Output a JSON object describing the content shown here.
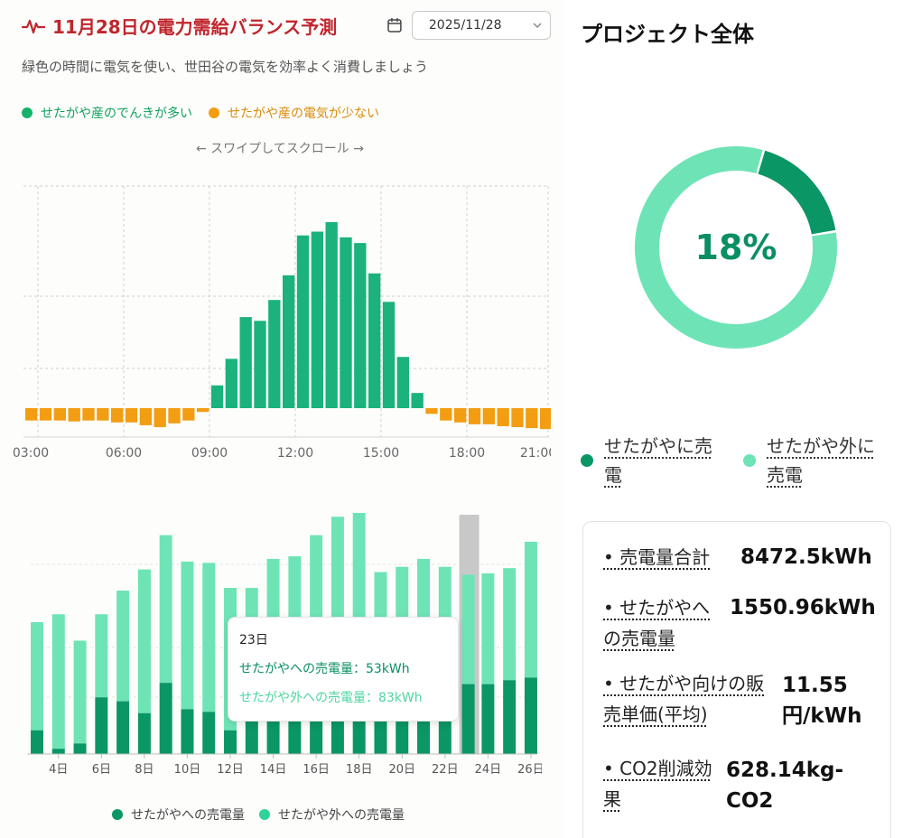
{
  "header": {
    "title": "11月28日の電力需給バランス予測",
    "date_value": "2025/11/28",
    "subtitle": "緑色の時間に電気を使い、世田谷の電気を効率よく消費しましょう",
    "swipe_hint": "← スワイプしてスクロール →"
  },
  "colors": {
    "accent_red": "#c0262d",
    "green_dark": "#0a9665",
    "green_main": "#1bb27e",
    "green_light": "#6ee4b6",
    "orange": "#f29d12",
    "gray_bar": "#c8c8c8"
  },
  "chart_data": [
    {
      "type": "bar",
      "legend": [
        {
          "label": "せたがや産のでんきが多い",
          "color": "#16b26a"
        },
        {
          "label": "せたがや産の電気が少ない",
          "color": "#f29d12"
        }
      ],
      "x_ticks": [
        "03:00",
        "06:00",
        "09:00",
        "12:00",
        "15:00",
        "18:00",
        "21:00"
      ],
      "x_start_hour": 3,
      "step_hours": 0.5,
      "values": [
        -13,
        -13,
        -13,
        -14,
        -13,
        -13,
        -15,
        -15,
        -18,
        -20,
        -16,
        -13,
        -4,
        24,
        52,
        96,
        92,
        114,
        140,
        182,
        186,
        196,
        180,
        174,
        142,
        112,
        54,
        16,
        -6,
        -13,
        -15,
        -17,
        -17,
        -19,
        -20,
        -21,
        -22,
        -23,
        -23
      ],
      "ylim": [
        -30,
        240
      ],
      "grid": true
    },
    {
      "type": "bar",
      "stacked": true,
      "categories": [
        "3日",
        "4日",
        "5日",
        "6日",
        "7日",
        "8日",
        "9日",
        "10日",
        "11日",
        "12日",
        "13日",
        "14日",
        "15日",
        "16日",
        "17日",
        "18日",
        "19日",
        "20日",
        "21日",
        "22日",
        "23日",
        "24日",
        "25日",
        "26日"
      ],
      "x_tick_labels": [
        "4日",
        "6日",
        "8日",
        "10日",
        "12日",
        "14日",
        "16日",
        "18日",
        "20日",
        "22日",
        "24日",
        "26日"
      ],
      "series": [
        {
          "name": "せたがやへの売電量",
          "color": "#0a9665",
          "values": [
            18,
            4,
            8,
            43,
            40,
            31,
            54,
            34,
            32,
            18,
            36,
            38,
            40,
            43,
            48,
            45,
            42,
            44,
            38,
            36,
            53,
            53,
            56,
            58
          ]
        },
        {
          "name": "せたがや外への売電量",
          "color": "#6ee4b6",
          "values": [
            82,
            102,
            78,
            63,
            84,
            109,
            112,
            112,
            113,
            108,
            90,
            110,
            110,
            123,
            132,
            141,
            96,
            98,
            110,
            106,
            83,
            84,
            85,
            103
          ]
        }
      ],
      "ylim": [
        0,
        180
      ],
      "highlight_index": 20,
      "tooltip": {
        "title": "23日",
        "line_a": "せたがやへの売電量：53kWh",
        "line_b": "せたがや外への売電量：83kWh"
      }
    },
    {
      "type": "pie",
      "donut": true,
      "center_label": "18%",
      "slices": [
        {
          "name": "せたがやに売電",
          "value": 18,
          "color": "#0a9665"
        },
        {
          "name": "せたがや外に売電",
          "value": 82,
          "color": "#6ee4b6"
        }
      ]
    }
  ],
  "project": {
    "title": "プロジェクト全体",
    "stats": [
      {
        "key_lines": [
          "• 売電量合計"
        ],
        "value_lines": [
          "8472.5kWh"
        ]
      },
      {
        "key_lines": [
          "• せたがやへ",
          "の売電量"
        ],
        "value_lines": [
          "1550.96kWh"
        ]
      },
      {
        "key_lines": [
          "• せたがや向けの販",
          "売単価(平均)"
        ],
        "value_lines": [
          "11.55",
          "円/kWh"
        ]
      },
      {
        "key_lines": [
          "• CO2削減効",
          "果"
        ],
        "value_lines": [
          "628.14kg-",
          "CO2"
        ]
      }
    ]
  }
}
